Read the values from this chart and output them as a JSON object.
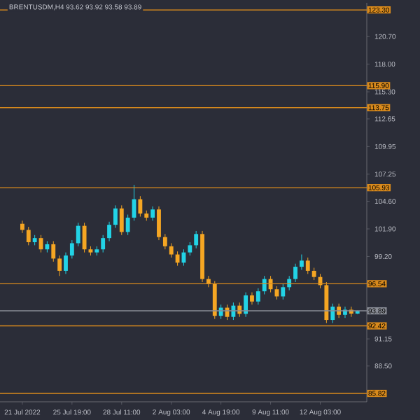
{
  "chart_data": {
    "type": "candlestick",
    "title": "BRENTUSDM,H4  93.62 93.92 93.58 93.89",
    "categories": [
      "21 Jul 2022",
      null,
      null,
      null,
      null,
      null,
      null,
      null,
      "25 Jul 19:00",
      null,
      null,
      null,
      null,
      null,
      null,
      null,
      "28 Jul 11:00",
      null,
      null,
      null,
      null,
      null,
      null,
      null,
      "2 Aug 03:00",
      null,
      null,
      null,
      null,
      null,
      null,
      null,
      "4 Aug 19:00",
      null,
      null,
      null,
      null,
      null,
      null,
      null,
      "9 Aug 11:00",
      null,
      null,
      null,
      null,
      null,
      null,
      null,
      "12 Aug 03:00",
      null,
      null,
      null,
      null,
      null,
      null
    ],
    "ohlc": [
      [
        102.4,
        102.7,
        101.5,
        101.8
      ],
      [
        101.8,
        102.1,
        100.3,
        100.6
      ],
      [
        100.6,
        101.3,
        100.3,
        101.0
      ],
      [
        101.0,
        101.3,
        99.6,
        99.9
      ],
      [
        99.9,
        100.7,
        99.6,
        100.4
      ],
      [
        100.4,
        100.7,
        98.7,
        99.0
      ],
      [
        99.0,
        99.3,
        97.3,
        97.8
      ],
      [
        97.8,
        99.6,
        97.5,
        99.3
      ],
      [
        99.3,
        100.8,
        99.0,
        100.5
      ],
      [
        100.5,
        102.5,
        100.2,
        102.2
      ],
      [
        102.2,
        102.5,
        99.6,
        99.9
      ],
      [
        99.9,
        100.2,
        99.3,
        99.6
      ],
      [
        99.6,
        100.2,
        99.3,
        99.9
      ],
      [
        99.9,
        101.3,
        99.6,
        101.0
      ],
      [
        101.0,
        102.6,
        100.7,
        102.3
      ],
      [
        102.3,
        104.2,
        102.0,
        103.9
      ],
      [
        103.9,
        104.2,
        101.3,
        101.6
      ],
      [
        101.6,
        103.3,
        101.3,
        103.0
      ],
      [
        103.0,
        106.2,
        102.7,
        104.8
      ],
      [
        104.8,
        105.1,
        103.1,
        103.4
      ],
      [
        103.4,
        103.7,
        102.7,
        103.0
      ],
      [
        103.0,
        104.1,
        102.7,
        103.8
      ],
      [
        103.8,
        104.1,
        100.8,
        101.1
      ],
      [
        101.1,
        101.4,
        99.9,
        100.2
      ],
      [
        100.2,
        100.5,
        99.1,
        99.4
      ],
      [
        99.4,
        99.7,
        98.3,
        98.6
      ],
      [
        98.6,
        99.9,
        98.3,
        99.6
      ],
      [
        99.6,
        100.6,
        99.3,
        100.3
      ],
      [
        100.3,
        101.7,
        100.0,
        101.4
      ],
      [
        101.4,
        101.7,
        96.7,
        97.0
      ],
      [
        97.0,
        97.3,
        96.2,
        96.5
      ],
      [
        96.5,
        96.8,
        93.1,
        93.4
      ],
      [
        93.4,
        94.5,
        93.1,
        94.2
      ],
      [
        94.2,
        94.5,
        93.0,
        93.3
      ],
      [
        93.3,
        94.7,
        93.0,
        94.4
      ],
      [
        94.4,
        94.7,
        93.3,
        93.6
      ],
      [
        93.6,
        95.7,
        93.3,
        95.4
      ],
      [
        95.4,
        95.7,
        94.5,
        94.8
      ],
      [
        94.8,
        96.1,
        94.5,
        95.8
      ],
      [
        95.8,
        97.3,
        95.5,
        97.0
      ],
      [
        97.0,
        97.3,
        95.7,
        96.0
      ],
      [
        96.0,
        96.3,
        95.0,
        95.3
      ],
      [
        95.3,
        96.5,
        95.0,
        96.2
      ],
      [
        96.2,
        97.3,
        95.9,
        97.0
      ],
      [
        97.0,
        98.5,
        96.7,
        98.2
      ],
      [
        98.2,
        99.4,
        97.9,
        98.8
      ],
      [
        98.8,
        99.1,
        97.5,
        97.8
      ],
      [
        97.8,
        98.1,
        96.9,
        97.2
      ],
      [
        97.2,
        97.5,
        96.1,
        96.4
      ],
      [
        96.4,
        96.7,
        92.7,
        93.0
      ],
      [
        93.0,
        94.6,
        92.7,
        94.3
      ],
      [
        94.3,
        94.6,
        93.2,
        93.5
      ],
      [
        93.5,
        94.3,
        93.2,
        94.0
      ],
      [
        94.0,
        94.3,
        93.3,
        93.62
      ],
      [
        93.62,
        93.92,
        93.58,
        93.89
      ]
    ],
    "colors": [
      "#f5a623",
      "#f5a623",
      "#22d3e6",
      "#f5a623",
      "#22d3e6",
      "#f5a623",
      "#f5a623",
      "#22d3e6",
      "#22d3e6",
      "#22d3e6",
      "#f5a623",
      "#f5a623",
      "#22d3e6",
      "#22d3e6",
      "#22d3e6",
      "#22d3e6",
      "#f5a623",
      "#22d3e6",
      "#22d3e6",
      "#f5a623",
      "#f5a623",
      "#22d3e6",
      "#f5a623",
      "#f5a623",
      "#f5a623",
      "#f5a623",
      "#22d3e6",
      "#22d3e6",
      "#22d3e6",
      "#f5a623",
      "#f5a623",
      "#f5a623",
      "#22d3e6",
      "#f5a623",
      "#22d3e6",
      "#f5a623",
      "#22d3e6",
      "#f5a623",
      "#22d3e6",
      "#22d3e6",
      "#f5a623",
      "#f5a623",
      "#22d3e6",
      "#22d3e6",
      "#22d3e6",
      "#22d3e6",
      "#f5a623",
      "#f5a623",
      "#f5a623",
      "#f5a623",
      "#22d3e6",
      "#f5a623",
      "#22d3e6",
      "#f5a623",
      "#22d3e6"
    ],
    "ylim": [
      85.0,
      124.0
    ],
    "yticks": [
      {
        "value": 120.7,
        "label": "120.70"
      },
      {
        "value": 118.0,
        "label": "118.00"
      },
      {
        "value": 115.3,
        "label": "115.30"
      },
      {
        "value": 112.65,
        "label": "112.65"
      },
      {
        "value": 109.95,
        "label": "109.95"
      },
      {
        "value": 107.25,
        "label": "107.25"
      },
      {
        "value": 104.6,
        "label": "104.60"
      },
      {
        "value": 101.9,
        "label": "101.90"
      },
      {
        "value": 99.2,
        "label": "99.20"
      },
      {
        "value": 91.15,
        "label": "91.15"
      },
      {
        "value": 88.5,
        "label": "88.50"
      }
    ],
    "ref_lines": [
      {
        "axis": "y",
        "value": 123.3,
        "label": "123.30",
        "color": "#d98a1c"
      },
      {
        "axis": "y",
        "value": 115.9,
        "label": "115.90",
        "color": "#d98a1c"
      },
      {
        "axis": "y",
        "value": 113.75,
        "label": "113.75",
        "color": "#d98a1c"
      },
      {
        "axis": "y",
        "value": 105.93,
        "label": "105.93",
        "color": "#d98a1c"
      },
      {
        "axis": "y",
        "value": 96.54,
        "label": "96.54",
        "color": "#d98a1c"
      },
      {
        "axis": "y",
        "value": 93.89,
        "label": "93.89",
        "color": "#8a8d96"
      },
      {
        "axis": "y",
        "value": 92.42,
        "label": "92.42",
        "color": "#d98a1c"
      },
      {
        "axis": "y",
        "value": 85.82,
        "label": "85.82",
        "color": "#d98a1c"
      }
    ]
  }
}
